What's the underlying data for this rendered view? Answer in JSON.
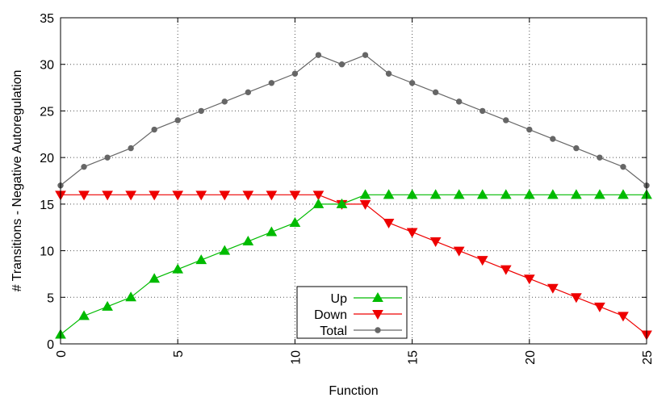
{
  "chart_data": {
    "type": "line",
    "xlabel": "Function",
    "ylabel": "# Transitions - Negative Autoregulation",
    "xlim": [
      0,
      25
    ],
    "ylim": [
      0,
      35
    ],
    "xticks": [
      0,
      5,
      10,
      15,
      20,
      25
    ],
    "yticks": [
      0,
      5,
      10,
      15,
      20,
      25,
      30,
      35
    ],
    "grid": true,
    "legend_position": "bottom-center",
    "x": [
      0,
      1,
      2,
      3,
      4,
      5,
      6,
      7,
      8,
      9,
      10,
      11,
      12,
      13,
      14,
      15,
      16,
      17,
      18,
      19,
      20,
      21,
      22,
      23,
      24,
      25
    ],
    "series": [
      {
        "name": "Up",
        "color": "#00bb00",
        "marker": "triangle-up",
        "values": [
          1,
          3,
          4,
          5,
          7,
          8,
          9,
          10,
          11,
          12,
          13,
          15,
          15,
          16,
          16,
          16,
          16,
          16,
          16,
          16,
          16,
          16,
          16,
          16,
          16,
          16
        ]
      },
      {
        "name": "Down",
        "color": "#ee0000",
        "marker": "triangle-down",
        "values": [
          16,
          16,
          16,
          16,
          16,
          16,
          16,
          16,
          16,
          16,
          16,
          16,
          15,
          15,
          13,
          12,
          11,
          10,
          9,
          8,
          7,
          6,
          5,
          4,
          3,
          1
        ]
      },
      {
        "name": "Total",
        "color": "#666666",
        "marker": "circle",
        "values": [
          17,
          19,
          20,
          21,
          23,
          24,
          25,
          26,
          27,
          28,
          29,
          31,
          30,
          31,
          29,
          28,
          27,
          26,
          25,
          24,
          23,
          22,
          21,
          20,
          19,
          17
        ]
      }
    ]
  }
}
